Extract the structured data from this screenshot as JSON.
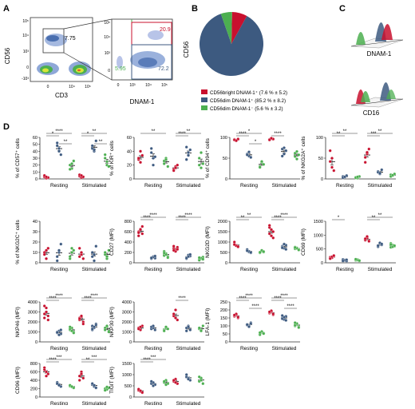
{
  "panels": {
    "A": "A",
    "B": "B",
    "C": "C",
    "D": "D"
  },
  "colors": {
    "bright": "#c8102e",
    "dimPlus": "#3d5a80",
    "dimMinus": "#4caf50",
    "axis": "#333333"
  },
  "flow": {
    "cd56": "CD56",
    "cd3": "CD3",
    "dnam1": "DNAM-1",
    "gate_pct": "7.75",
    "q_bright": "20.9",
    "q_dimplus": "72.2",
    "q_dimminus": "5.95",
    "ticks_y1": [
      "10⁵",
      "10⁴",
      "10³",
      "0",
      "-10³"
    ],
    "ticks_x1": [
      "0",
      "10⁴",
      "10⁵"
    ],
    "ticks_y2": [
      "10⁵",
      "10⁴",
      "10³",
      "0"
    ],
    "ticks_x2": [
      "0",
      "10³",
      "10⁴",
      "10⁵"
    ]
  },
  "pie": {
    "slices": [
      {
        "label": "CD56bright DNAM-1⁺ (7.6 % ± 5.2)",
        "value": 7.6,
        "color": "#c8102e"
      },
      {
        "label": "CD56dim DNAM-1⁺ (85.2 % ± 8.2)",
        "value": 85.2,
        "color": "#3d5a80"
      },
      {
        "label": "CD56dim DNAM-1⁻ (5.6 % ± 3.2)",
        "value": 5.6,
        "color": "#4caf50"
      }
    ]
  },
  "histo": {
    "label1": "DNAM-1",
    "label2": "CD16"
  },
  "groups": [
    "Resting",
    "Stimulated"
  ],
  "chart_data": [
    {
      "type": "scatter",
      "ylabel": "% of CD57⁺ cells",
      "ylim": [
        0,
        60
      ],
      "ticks": [
        0,
        10,
        20,
        30,
        40,
        50,
        60
      ],
      "series": [
        [
          [
            3,
            1,
            2,
            5,
            3
          ],
          [
            48,
            44,
            35,
            52,
            40
          ],
          [
            20,
            15,
            26,
            14,
            22
          ]
        ],
        [
          [
            4,
            2,
            3,
            6,
            5
          ],
          [
            48,
            40,
            55,
            44,
            42
          ],
          [
            30,
            20,
            18,
            35,
            25
          ]
        ]
      ],
      "sig": [
        [
          "*",
          "****",
          "**"
        ],
        [
          "*",
          "**",
          "**"
        ]
      ]
    },
    {
      "type": "scatter",
      "ylabel": "% of KIR⁺ cells",
      "ylim": [
        0,
        60
      ],
      "ticks": [
        0,
        20,
        40,
        60
      ],
      "series": [
        [
          [
            28,
            24,
            34,
            30,
            40
          ],
          [
            38,
            30,
            32,
            44,
            20
          ],
          [
            22,
            30,
            18,
            26,
            28
          ]
        ],
        [
          [
            14,
            18,
            20,
            12,
            16
          ],
          [
            46,
            38,
            42,
            28,
            34
          ],
          [
            30,
            16,
            22,
            20,
            38
          ]
        ]
      ],
      "sig": [
        [
          "",
          "**",
          ""
        ],
        [
          "****",
          "**",
          ""
        ]
      ]
    },
    {
      "type": "scatter",
      "ylabel": "% of CD94⁺ cells",
      "ylim": [
        0,
        100
      ],
      "ticks": [
        0,
        50,
        100
      ],
      "series": [
        [
          [
            95,
            93,
            96,
            94,
            92
          ],
          [
            60,
            55,
            52,
            58,
            65
          ],
          [
            30,
            40,
            35,
            28,
            42
          ]
        ],
        [
          [
            95,
            97,
            96,
            94,
            98
          ],
          [
            72,
            60,
            68,
            55,
            75
          ],
          [
            62,
            48,
            58,
            54,
            66
          ]
        ]
      ],
      "sig": [
        [
          "****",
          "*",
          "*"
        ],
        [
          "****",
          "",
          ""
        ]
      ]
    },
    {
      "type": "scatter",
      "ylabel": "% of NKG2A⁺ cells",
      "ylim": [
        0,
        100
      ],
      "ticks": [
        0,
        50,
        100
      ],
      "series": [
        [
          [
            42,
            28,
            20,
            68,
            50
          ],
          [
            6,
            4,
            8,
            3,
            5
          ],
          [
            4,
            2,
            6,
            3,
            5
          ]
        ],
        [
          [
            52,
            60,
            72,
            40,
            64
          ],
          [
            18,
            12,
            22,
            16,
            14
          ],
          [
            10,
            8,
            12,
            6,
            9
          ]
        ]
      ],
      "sig": [
        [
          "**",
          "**",
          ""
        ],
        [
          "***",
          "**",
          ""
        ]
      ]
    },
    {
      "type": "scatter",
      "ylabel": "% of NKG2C⁺ cells",
      "ylim": [
        0,
        40
      ],
      "ticks": [
        0,
        10,
        20,
        30,
        40
      ],
      "series": [
        [
          [
            10,
            4,
            14,
            8,
            12
          ],
          [
            6,
            10,
            18,
            2,
            12
          ],
          [
            4,
            14,
            12,
            6,
            10
          ]
        ],
        [
          [
            6,
            8,
            4,
            14,
            10
          ],
          [
            10,
            2,
            16,
            6,
            8
          ],
          [
            8,
            4,
            12,
            10,
            6
          ]
        ]
      ],
      "sig": [
        [
          "",
          "",
          ""
        ],
        [
          "",
          "",
          ""
        ]
      ]
    },
    {
      "type": "scatter",
      "ylabel": "CD27 (MFI)",
      "ylim": [
        0,
        800
      ],
      "ticks": [
        0,
        200,
        400,
        600,
        800
      ],
      "series": [
        [
          [
            600,
            650,
            560,
            520,
            640,
            700,
            580
          ],
          [
            100,
            120,
            90,
            80,
            110,
            130,
            95
          ],
          [
            140,
            180,
            120,
            220,
            160,
            100,
            190
          ]
        ],
        [
          [
            280,
            250,
            300,
            320,
            220,
            260,
            240
          ],
          [
            100,
            150,
            130,
            80,
            120,
            160,
            90
          ],
          [
            60,
            80,
            110,
            50,
            90,
            70,
            100
          ]
        ]
      ],
      "sig": [
        [
          "****",
          "****",
          ""
        ],
        [
          "****",
          "****",
          ""
        ]
      ]
    },
    {
      "type": "scatter",
      "ylabel": "NKG2D (MFI)",
      "ylim": [
        0,
        2000
      ],
      "ticks": [
        0,
        500,
        1000,
        1500,
        2000
      ],
      "series": [
        [
          [
            900,
            840,
            760,
            1000,
            820,
            780,
            880
          ],
          [
            600,
            520,
            480,
            640,
            550,
            500,
            580
          ],
          [
            500,
            560,
            520,
            480,
            600,
            540,
            510
          ]
        ],
        [
          [
            1400,
            1600,
            1200,
            1700,
            1300,
            1500,
            1800
          ],
          [
            800,
            700,
            850,
            760,
            900,
            650,
            720
          ],
          [
            680,
            720,
            640,
            760,
            700,
            620,
            740
          ]
        ]
      ],
      "sig": [
        [
          "**",
          "**",
          ""
        ],
        [
          "****",
          "****",
          ""
        ]
      ]
    },
    {
      "type": "scatter",
      "ylabel": "CD69 (MFI)",
      "ylim": [
        0,
        1500
      ],
      "ticks": [
        0,
        500,
        1000,
        1500
      ],
      "series": [
        [
          [
            200,
            180,
            240,
            160,
            220,
            260,
            150
          ],
          [
            80,
            100,
            60,
            120,
            90,
            110,
            70
          ],
          [
            90,
            120,
            70,
            110,
            100,
            80,
            130
          ]
        ],
        [
          [
            850,
            900,
            800,
            820,
            950,
            780,
            870
          ],
          [
            600,
            700,
            650,
            580,
            720,
            680,
            620
          ],
          [
            560,
            640,
            600,
            700,
            580,
            620,
            660
          ]
        ]
      ],
      "sig": [
        [
          "*",
          "",
          ""
        ],
        [
          "**",
          "**",
          ""
        ]
      ]
    },
    {
      "type": "scatter",
      "ylabel": "NKP46 (MFI)",
      "ylim": [
        0,
        4000
      ],
      "ticks": [
        0,
        1000,
        2000,
        3000,
        4000
      ],
      "series": [
        [
          [
            2800,
            3400,
            2600,
            2400,
            3000,
            2200,
            3600
          ],
          [
            900,
            1100,
            800,
            1000,
            700,
            1200,
            950
          ],
          [
            1200,
            1400,
            1000,
            1300,
            1100,
            900,
            1500
          ]
        ],
        [
          [
            2200,
            2500,
            2000,
            2400,
            2600,
            1800,
            2300
          ],
          [
            1600,
            1400,
            1800,
            1200,
            1500,
            1700,
            1300
          ],
          [
            1300,
            1500,
            1100,
            1400,
            1600,
            1000,
            1200
          ]
        ]
      ],
      "sig": [
        [
          "****",
          "****",
          ""
        ],
        [
          "****",
          "****",
          ""
        ]
      ]
    },
    {
      "type": "scatter",
      "ylabel": "NKP30 (MFI)",
      "ylim": [
        0,
        4000
      ],
      "ticks": [
        0,
        1000,
        2000,
        3000,
        4000
      ],
      "series": [
        [
          [
            1400,
            1200,
            1600,
            1300,
            1500
          ],
          [
            1300,
            1400,
            1200,
            1500,
            1600
          ],
          [
            1200,
            1400,
            1300,
            1100,
            1500
          ]
        ],
        [
          [
            2600,
            3200,
            2200,
            2800,
            2400
          ],
          [
            1400,
            1600,
            1200,
            1100,
            1500
          ],
          [
            1300,
            1200,
            1600,
            1400,
            1100
          ]
        ]
      ],
      "sig": [
        [
          "",
          "",
          ""
        ],
        [
          "****",
          "",
          ""
        ]
      ]
    },
    {
      "type": "scatter",
      "ylabel": "LFA-1 (MFI)",
      "ylim": [
        0,
        250
      ],
      "ticks": [
        0,
        50,
        100,
        150,
        200,
        250
      ],
      "series": [
        [
          [
            160,
            170,
            150,
            165,
            175,
            155,
            168
          ],
          [
            110,
            100,
            120,
            105,
            95,
            115,
            108
          ],
          [
            50,
            60,
            55,
            45,
            65,
            52,
            58
          ]
        ],
        [
          [
            180,
            190,
            170,
            185,
            195,
            175,
            188
          ],
          [
            150,
            140,
            160,
            145,
            155,
            135,
            165
          ],
          [
            100,
            110,
            95,
            105,
            115,
            90,
            120
          ]
        ]
      ],
      "sig": [
        [
          "****",
          "****",
          "****"
        ],
        [
          "****",
          "****",
          "****"
        ]
      ]
    },
    {
      "type": "scatter",
      "ylabel": "CD96 (MFI)",
      "ylim": [
        0,
        800
      ],
      "ticks": [
        0,
        200,
        400,
        600,
        800
      ],
      "series": [
        [
          [
            700,
            600,
            550,
            650,
            500
          ],
          [
            350,
            300,
            250,
            320,
            280
          ],
          [
            260,
            240,
            220,
            280,
            250
          ]
        ],
        [
          [
            500,
            600,
            450,
            400,
            550
          ],
          [
            300,
            250,
            220,
            320,
            280
          ],
          [
            200,
            180,
            220,
            160,
            240
          ]
        ]
      ],
      "sig": [
        [
          "****",
          "***",
          ""
        ],
        [
          "**",
          "***",
          ""
        ]
      ]
    },
    {
      "type": "scatter",
      "ylabel": "TIGIT (MFI)",
      "ylim": [
        0,
        1500
      ],
      "ticks": [
        0,
        500,
        1000,
        1500
      ],
      "series": [
        [
          [
            300,
            250,
            200,
            350,
            280
          ],
          [
            600,
            650,
            550,
            700,
            500
          ],
          [
            650,
            750,
            600,
            700,
            550
          ]
        ],
        [
          [
            700,
            800,
            600,
            750,
            650
          ],
          [
            900,
            850,
            750,
            1000,
            800
          ],
          [
            700,
            850,
            600,
            900,
            750
          ]
        ]
      ],
      "sig": [
        [
          "****",
          "***",
          ""
        ],
        [
          "",
          "",
          ""
        ]
      ]
    }
  ]
}
